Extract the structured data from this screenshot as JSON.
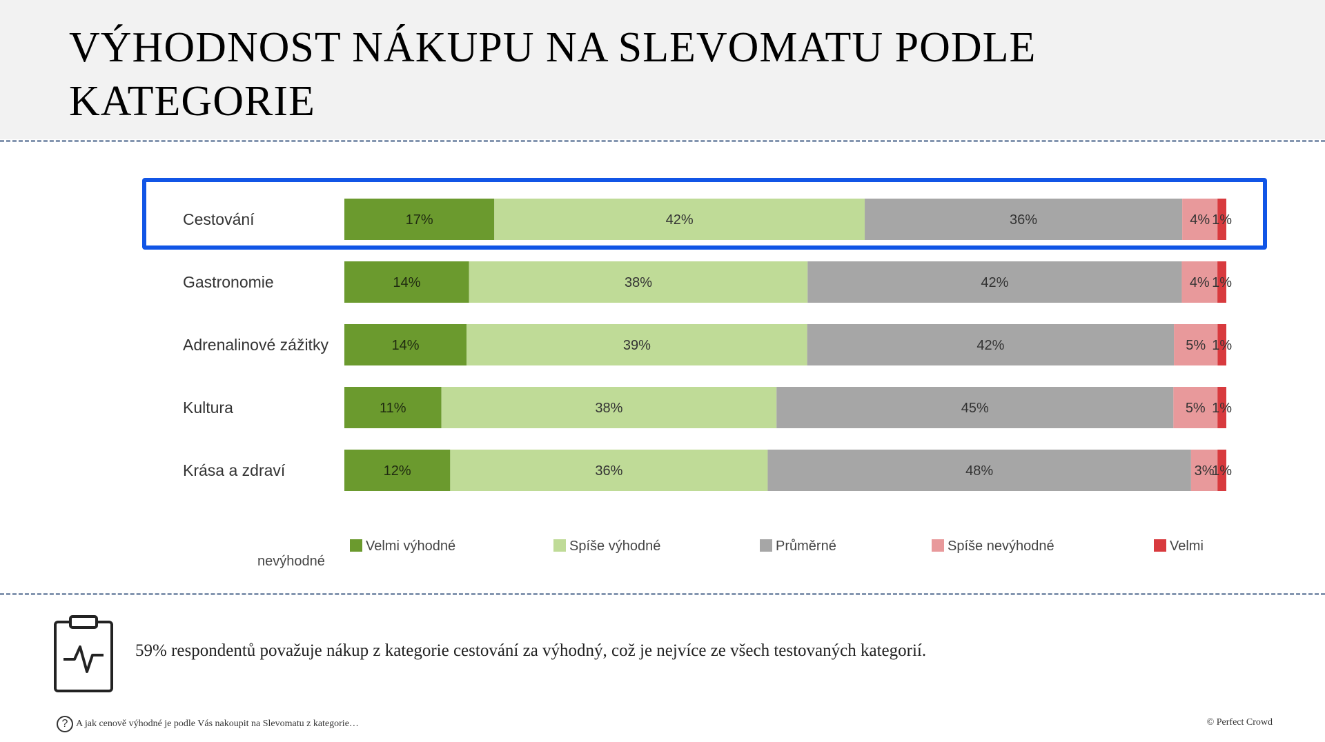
{
  "title": "VÝHODNOST NÁKUPU NA SLEVOMATU PODLE KATEGORIE",
  "chart_data": {
    "type": "bar",
    "orientation": "horizontal",
    "stacked": true,
    "categories": [
      "Cestování",
      "Gastronomie",
      "Adrenalinové zážitky",
      "Kultura",
      "Krása a zdraví"
    ],
    "series": [
      {
        "name": "Velmi výhodné",
        "color": "#6b9a2e",
        "values": [
          17,
          14,
          14,
          11,
          12
        ],
        "labels": [
          "17%",
          "14%",
          "14%",
          "11%",
          "12%"
        ]
      },
      {
        "name": "Spíše výhodné",
        "color": "#bfdb97",
        "values": [
          42,
          38,
          39,
          38,
          36
        ],
        "labels": [
          "42%",
          "38%",
          "39%",
          "38%",
          "36%"
        ]
      },
      {
        "name": "Průměrné",
        "color": "#a6a6a6",
        "values": [
          36,
          42,
          42,
          45,
          48
        ],
        "labels": [
          "36%",
          "42%",
          "42%",
          "45%",
          "48%"
        ]
      },
      {
        "name": "Spíše nevýhodné",
        "color": "#e8999b",
        "values": [
          4,
          4,
          5,
          5,
          3
        ],
        "labels": [
          "4%",
          "4%",
          "5%",
          "5%",
          "3%"
        ]
      },
      {
        "name": "Velmi",
        "color": "#d83a3e",
        "values": [
          1,
          1,
          1,
          1,
          1
        ],
        "labels": [
          "1%",
          "1%",
          "1%",
          "1%",
          "1%"
        ]
      }
    ],
    "legend_tail": "nevýhodné",
    "highlighted_category": "Cestování",
    "legend_position": "bottom"
  },
  "insight": "59% respondentů považuje nákup z kategorie cestování za výhodný, což je nejvíce ze všech testovaných kategorií.",
  "footnote": {
    "icon": "question-circle-icon",
    "icon_text": "?",
    "text": "A jak cenově výhodné je podle Vás nakoupit na Slevomatu z kategorie…"
  },
  "copyright": "© Perfect Crowd",
  "clipboard_icon": "clipboard-pulse-icon"
}
